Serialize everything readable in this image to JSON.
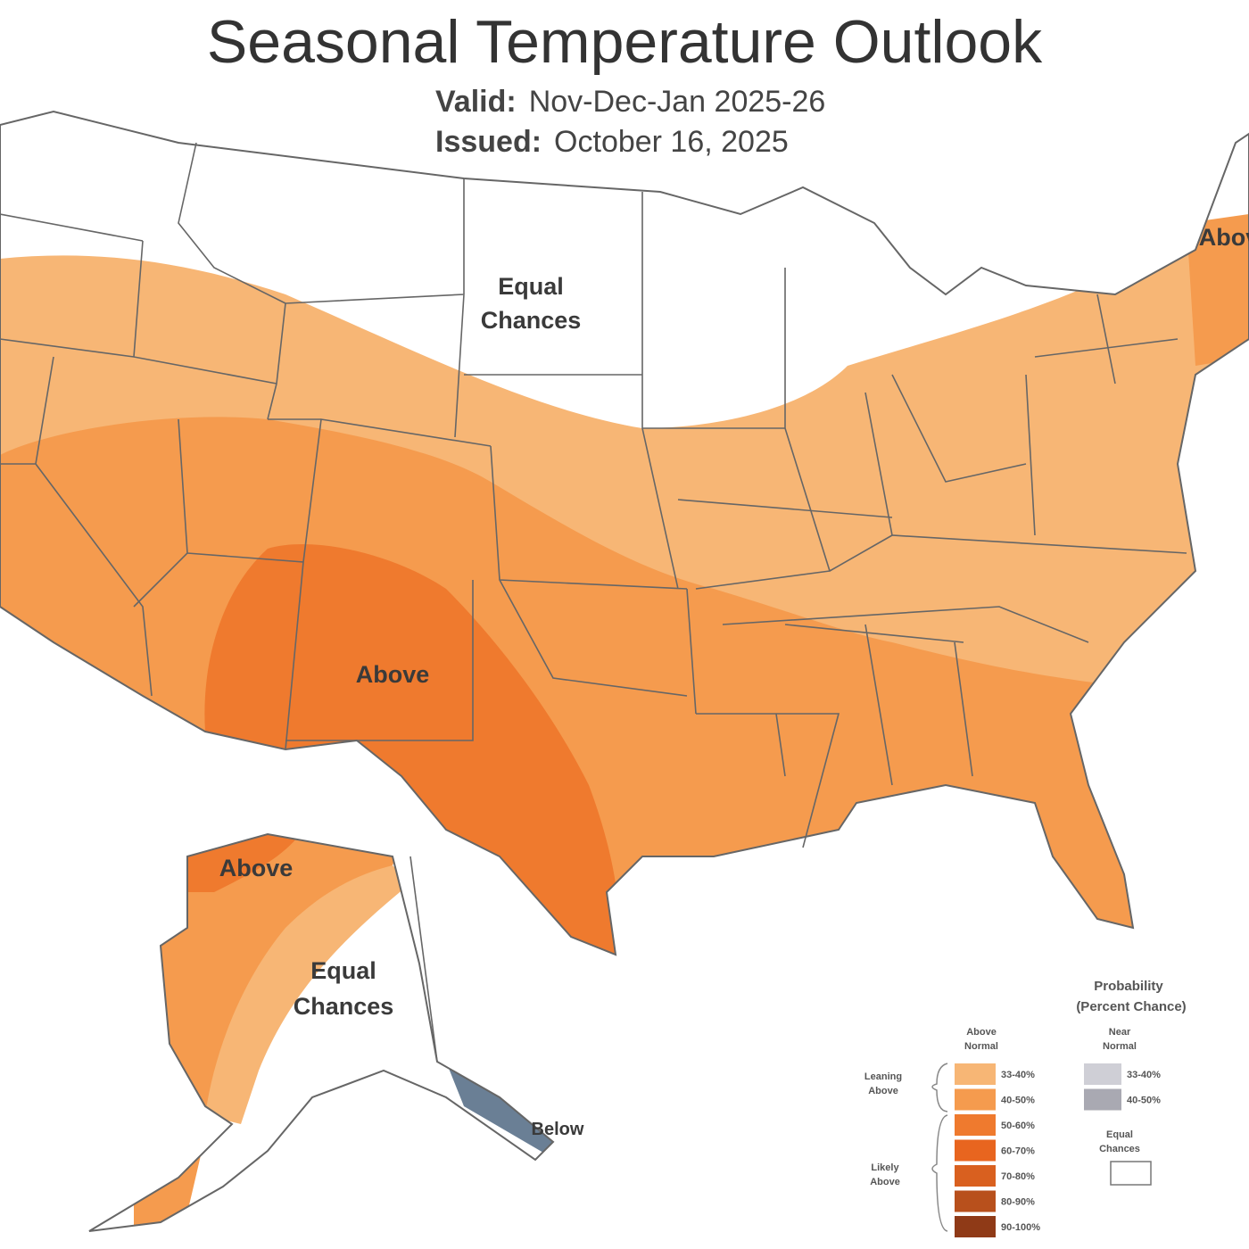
{
  "title": "Seasonal Temperature Outlook",
  "valid": {
    "label": "Valid:",
    "value": "Nov-Dec-Jan 2025-26"
  },
  "issued": {
    "label": "Issued:",
    "value": "October 16, 2025"
  },
  "map_labels": {
    "conus_equal": [
      "Equal",
      "Chances"
    ],
    "conus_above": "Above",
    "northeast_above": "Above",
    "alaska_above": "Above",
    "alaska_equal": [
      "Equal",
      "Chances"
    ],
    "alaska_below": "Below"
  },
  "colors": {
    "above_33_40": "#f7b675",
    "above_40_50": "#f59b4e",
    "above_50_60": "#ef7a2e",
    "above_60_70": "#e8651f",
    "above_70_80": "#d9601f",
    "above_80_90": "#b8501c",
    "above_90_100": "#8f3a17",
    "near_33_40": "#cfcfd6",
    "near_40_50": "#a9a9b2",
    "below_33_40": "#9fb3c6",
    "below_40_50": "#6a7f95",
    "border": "#666666"
  },
  "legend": {
    "title": [
      "Probability",
      "(Percent Chance)"
    ],
    "above_header": [
      "Above",
      "Normal"
    ],
    "near_header": [
      "Near",
      "Normal"
    ],
    "leaning_above": [
      "Leaning",
      "Above"
    ],
    "likely_above": [
      "Likely",
      "Above"
    ],
    "above_ranges": [
      "33-40%",
      "40-50%",
      "50-60%",
      "60-70%",
      "70-80%",
      "80-90%",
      "90-100%"
    ],
    "near_ranges": [
      "33-40%",
      "40-50%"
    ],
    "equal_chances": [
      "Equal",
      "Chances"
    ]
  }
}
